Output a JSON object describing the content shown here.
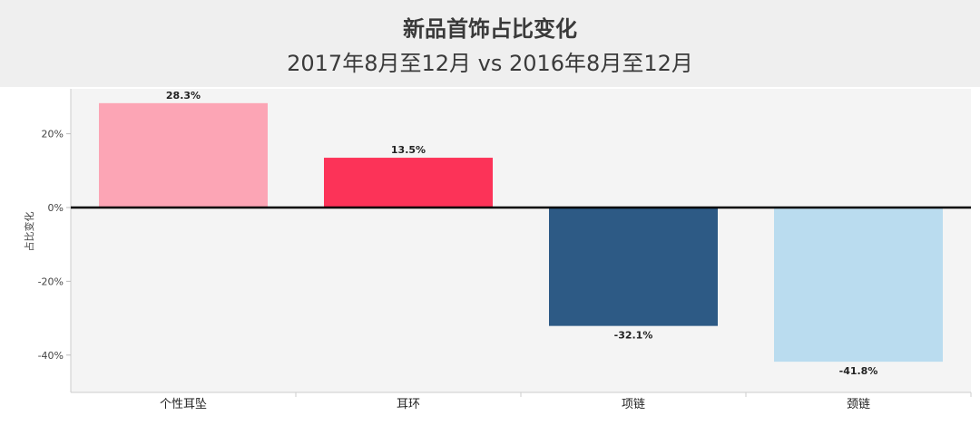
{
  "chart_data": {
    "type": "bar",
    "title": "新品首饰占比变化",
    "subtitle": "2017年8月至12月 vs 2016年8月至12月",
    "ylabel": "占比变化",
    "xlabel": "",
    "categories": [
      "个性耳坠",
      "耳环",
      "项链",
      "颈链"
    ],
    "values": [
      28.3,
      13.5,
      -32.1,
      -41.8
    ],
    "value_labels": [
      "28.3%",
      "13.5%",
      "-32.1%",
      "-41.8%"
    ],
    "colors": [
      "#fca5b5",
      "#fc3358",
      "#2d5a85",
      "#badcef"
    ],
    "ylim": [
      -50,
      32
    ],
    "yticks": [
      20,
      0,
      -20,
      -40
    ],
    "ytick_labels": [
      "20%",
      "0%",
      "-20%",
      "-40%"
    ],
    "grid": false,
    "zero_line": true
  }
}
